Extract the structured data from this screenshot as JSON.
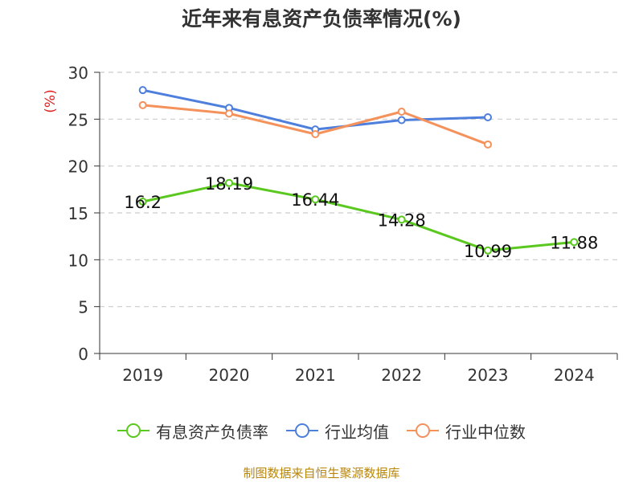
{
  "chart_data": {
    "type": "line",
    "title": "近年来有息资产负债率情况(%)",
    "ylabel": "(%)",
    "xlabel": "",
    "categories": [
      "2019",
      "2020",
      "2021",
      "2022",
      "2023",
      "2024"
    ],
    "ylim": [
      0,
      30
    ],
    "yticks": [
      0,
      5,
      10,
      15,
      20,
      25,
      30
    ],
    "grid": true,
    "legend_position": "bottom",
    "series": [
      {
        "name": "有息资产负债率",
        "color": "#5ac81e",
        "values": [
          16.2,
          18.19,
          16.44,
          14.28,
          10.99,
          11.88
        ],
        "labels": [
          "16.2",
          "18.19",
          "16.44",
          "14.28",
          "10.99",
          "11.88"
        ]
      },
      {
        "name": "行业均值",
        "color": "#4e7fdc",
        "values": [
          28.1,
          26.2,
          23.9,
          24.9,
          25.2,
          null
        ]
      },
      {
        "name": "行业中位数",
        "color": "#f5915a",
        "values": [
          26.5,
          25.6,
          23.4,
          25.8,
          22.3,
          null
        ]
      }
    ]
  },
  "source": "制图数据来自恒生聚源数据库"
}
